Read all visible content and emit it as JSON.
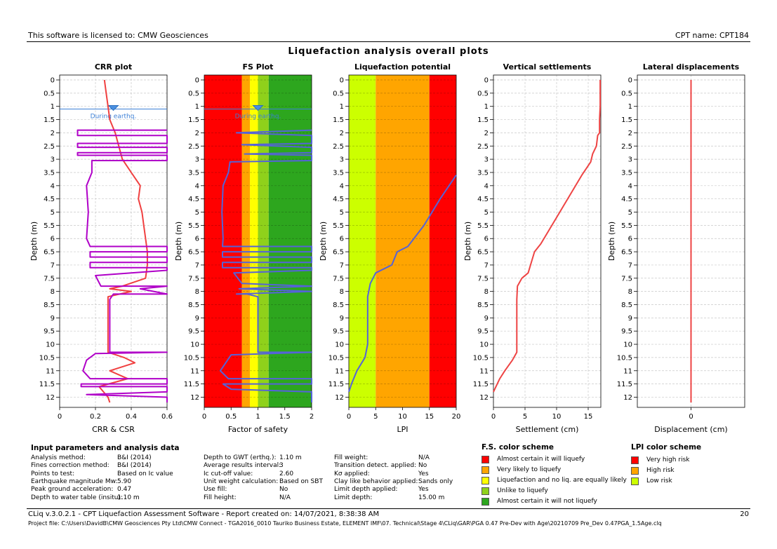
{
  "header": {
    "license": "This software is licensed to: CMW Geosciences",
    "cpt_name": "CPT name: CPT184"
  },
  "main_title": "Liquefaction analysis overall plots",
  "colors": {
    "red": "#ff0000",
    "orange": "#ffa500",
    "yellow": "#ffff00",
    "lightgreen": "#8fd11b",
    "green": "#2da61e",
    "ltgreen_lpi": "#ccff00",
    "crr": "#f04040",
    "csr": "#b000c8",
    "fs": "#5563d8",
    "settle": "#ee4444"
  },
  "chart_data": [
    {
      "type": "line",
      "title": "CRR plot",
      "xlabel": "CRR & CSR",
      "ylabel": "Depth (m)",
      "xlim": [
        0,
        0.6
      ],
      "xticks": [
        "0",
        "0.2",
        "0.4",
        "0.6"
      ],
      "ylim": [
        0,
        12.2
      ],
      "annotation": "During earthq.",
      "gwt_depth": 1.1,
      "series": [
        {
          "name": "CRR",
          "points": [
            [
              0.25,
              0
            ],
            [
              0.26,
              0.5
            ],
            [
              0.27,
              1
            ],
            [
              0.28,
              1.5
            ],
            [
              0.31,
              2
            ],
            [
              0.33,
              2.5
            ],
            [
              0.35,
              3
            ],
            [
              0.4,
              3.5
            ],
            [
              0.45,
              4
            ],
            [
              0.44,
              4.5
            ],
            [
              0.46,
              5
            ],
            [
              0.47,
              5.5
            ],
            [
              0.48,
              6
            ],
            [
              0.49,
              6.5
            ],
            [
              0.49,
              7
            ],
            [
              0.48,
              7.5
            ],
            [
              0.35,
              7.8
            ],
            [
              0.28,
              7.9
            ],
            [
              0.4,
              8
            ],
            [
              0.27,
              8.2
            ],
            [
              0.27,
              9
            ],
            [
              0.27,
              10
            ],
            [
              0.27,
              10.3
            ],
            [
              0.36,
              10.5
            ],
            [
              0.42,
              10.7
            ],
            [
              0.28,
              11
            ],
            [
              0.38,
              11.3
            ],
            [
              0.22,
              11.6
            ],
            [
              0.27,
              12
            ],
            [
              0.28,
              12.2
            ]
          ]
        },
        {
          "name": "CSR",
          "points": [
            [
              0.6,
              1.9
            ],
            [
              0.1,
              1.9
            ],
            [
              0.1,
              2.1
            ],
            [
              0.6,
              2.1
            ],
            [
              0.6,
              2.4
            ],
            [
              0.1,
              2.4
            ],
            [
              0.1,
              2.55
            ],
            [
              0.6,
              2.55
            ],
            [
              0.6,
              2.75
            ],
            [
              0.1,
              2.75
            ],
            [
              0.1,
              2.85
            ],
            [
              0.6,
              2.85
            ],
            [
              0.6,
              3.05
            ],
            [
              0.18,
              3.05
            ],
            [
              0.18,
              3.5
            ],
            [
              0.15,
              4
            ],
            [
              0.16,
              5
            ],
            [
              0.15,
              6
            ],
            [
              0.17,
              6.3
            ],
            [
              0.6,
              6.3
            ],
            [
              0.6,
              6.5
            ],
            [
              0.17,
              6.5
            ],
            [
              0.17,
              6.7
            ],
            [
              0.6,
              6.7
            ],
            [
              0.6,
              6.9
            ],
            [
              0.17,
              6.9
            ],
            [
              0.17,
              7.1
            ],
            [
              0.6,
              7.1
            ],
            [
              0.6,
              7.2
            ],
            [
              0.2,
              7.4
            ],
            [
              0.23,
              7.8
            ],
            [
              0.6,
              7.8
            ],
            [
              0.45,
              7.9
            ],
            [
              0.6,
              8.1
            ],
            [
              0.3,
              8.1
            ],
            [
              0.28,
              8.3
            ],
            [
              0.28,
              10.3
            ],
            [
              0.6,
              10.3
            ],
            [
              0.2,
              10.35
            ],
            [
              0.15,
              10.6
            ],
            [
              0.13,
              11
            ],
            [
              0.17,
              11.3
            ],
            [
              0.6,
              11.3
            ],
            [
              0.6,
              11.5
            ],
            [
              0.12,
              11.5
            ],
            [
              0.12,
              11.6
            ],
            [
              0.6,
              11.6
            ],
            [
              0.6,
              11.8
            ],
            [
              0.15,
              11.9
            ],
            [
              0.6,
              12
            ],
            [
              0.6,
              12.2
            ]
          ]
        }
      ]
    },
    {
      "type": "line",
      "title": "FS Plot",
      "xlabel": "Factor of safety",
      "ylabel": "Depth (m)",
      "xlim": [
        0,
        2
      ],
      "xticks": [
        "0",
        "0.5",
        "1",
        "1.5",
        "2"
      ],
      "ylim": [
        0,
        12.2
      ],
      "annotation": "During earthq.",
      "gwt_depth": 1.1,
      "background_bands": [
        [
          0,
          0.7,
          "red"
        ],
        [
          0.7,
          0.85,
          "orange"
        ],
        [
          0.85,
          1.0,
          "yellow"
        ],
        [
          1.0,
          1.2,
          "lightgreen"
        ],
        [
          1.2,
          2.0,
          "green"
        ]
      ],
      "series": [
        {
          "name": "FS",
          "points": [
            [
              2,
              1.9
            ],
            [
              0.6,
              2
            ],
            [
              2,
              2.1
            ],
            [
              2,
              2.4
            ],
            [
              0.7,
              2.45
            ],
            [
              2,
              2.55
            ],
            [
              2,
              2.75
            ],
            [
              0.75,
              2.8
            ],
            [
              2,
              2.85
            ],
            [
              2,
              3.05
            ],
            [
              0.48,
              3.1
            ],
            [
              0.45,
              3.5
            ],
            [
              0.35,
              4
            ],
            [
              0.34,
              4.5
            ],
            [
              0.33,
              5
            ],
            [
              0.34,
              5.5
            ],
            [
              0.35,
              6
            ],
            [
              0.34,
              6.3
            ],
            [
              2,
              6.3
            ],
            [
              2,
              6.5
            ],
            [
              0.34,
              6.5
            ],
            [
              0.34,
              6.7
            ],
            [
              2,
              6.7
            ],
            [
              2,
              6.9
            ],
            [
              0.34,
              6.9
            ],
            [
              0.34,
              7.1
            ],
            [
              2,
              7.1
            ],
            [
              2,
              7.2
            ],
            [
              0.55,
              7.3
            ],
            [
              0.7,
              7.7
            ],
            [
              2,
              7.8
            ],
            [
              0.65,
              7.9
            ],
            [
              2,
              8.0
            ],
            [
              0.6,
              8.1
            ],
            [
              0.8,
              8.1
            ],
            [
              1.0,
              8.2
            ],
            [
              1.0,
              10.3
            ],
            [
              2,
              10.3
            ],
            [
              0.5,
              10.4
            ],
            [
              0.4,
              10.7
            ],
            [
              0.3,
              11
            ],
            [
              0.45,
              11.3
            ],
            [
              2,
              11.3
            ],
            [
              2,
              11.5
            ],
            [
              0.35,
              11.5
            ],
            [
              0.5,
              11.7
            ],
            [
              2,
              11.8
            ],
            [
              2,
              12.2
            ]
          ]
        }
      ]
    },
    {
      "type": "line",
      "title": "Liquefaction potential",
      "xlabel": "LPI",
      "ylabel": "Depth (m)",
      "xlim": [
        0,
        20
      ],
      "xticks": [
        "0",
        "5",
        "10",
        "15",
        "20"
      ],
      "ylim": [
        0,
        12.2
      ],
      "background_bands": [
        [
          0,
          5,
          "ltgreen_lpi"
        ],
        [
          5,
          15,
          "orange"
        ],
        [
          15,
          20,
          "red"
        ]
      ],
      "series": [
        {
          "name": "LPI",
          "points": [
            [
              20,
              3.6
            ],
            [
              17,
              4.5
            ],
            [
              14,
              5.5
            ],
            [
              11,
              6.3
            ],
            [
              9,
              6.5
            ],
            [
              8,
              7
            ],
            [
              5,
              7.3
            ],
            [
              4,
              7.7
            ],
            [
              3.5,
              8.2
            ],
            [
              3.5,
              10
            ],
            [
              3,
              10.5
            ],
            [
              1.5,
              11
            ],
            [
              0.5,
              11.5
            ],
            [
              0,
              11.8
            ]
          ]
        }
      ]
    },
    {
      "type": "line",
      "title": "Vertical settlements",
      "xlabel": "Settlement (cm)",
      "ylabel": "Depth (m)",
      "xlim": [
        0,
        17
      ],
      "xticks": [
        "0",
        "5",
        "10",
        "15"
      ],
      "ylim": [
        0,
        12.2
      ],
      "series": [
        {
          "name": "Settlement",
          "points": [
            [
              16.9,
              0
            ],
            [
              16.9,
              1
            ],
            [
              16.8,
              1.5
            ],
            [
              16.8,
              2
            ],
            [
              16.5,
              2.1
            ],
            [
              16.3,
              2.5
            ],
            [
              15.7,
              2.8
            ],
            [
              15.4,
              3.1
            ],
            [
              14,
              3.6
            ],
            [
              12.5,
              4.2
            ],
            [
              10,
              5.2
            ],
            [
              7.5,
              6.2
            ],
            [
              6.5,
              6.5
            ],
            [
              5.5,
              7.3
            ],
            [
              4.5,
              7.5
            ],
            [
              3.8,
              7.8
            ],
            [
              3.7,
              8.3
            ],
            [
              3.7,
              10.3
            ],
            [
              3,
              10.6
            ],
            [
              1.8,
              11
            ],
            [
              1,
              11.3
            ],
            [
              0,
              11.8
            ]
          ]
        }
      ]
    },
    {
      "type": "line",
      "title": "Lateral displacements",
      "xlabel": "Displacement (cm)",
      "ylabel": "Depth (m)",
      "xlim": [
        -1,
        1
      ],
      "xticks": [
        "0"
      ],
      "ylim": [
        0,
        12.2
      ],
      "series": [
        {
          "name": "Displacement",
          "points": [
            [
              0,
              0
            ],
            [
              0,
              12.2
            ]
          ]
        }
      ]
    }
  ],
  "y_ticks": [
    "0",
    "0.5",
    "1",
    "1.5",
    "2",
    "2.5",
    "3",
    "3.5",
    "4",
    "4.5",
    "5",
    "5.5",
    "6",
    "6.5",
    "7",
    "7.5",
    "8",
    "8.5",
    "9",
    "9.5",
    "10",
    "10.5",
    "11",
    "11.5",
    "12"
  ],
  "input_params": {
    "title": "Input parameters and analysis data",
    "col1": [
      {
        "label": "Analysis method:",
        "value": "B&I (2014)"
      },
      {
        "label": "Fines correction method:",
        "value": "B&I (2014)"
      },
      {
        "label": "Points to test:",
        "value": "Based on Ic value"
      },
      {
        "label": "Earthquake magnitude Mw:",
        "value": "5.90"
      },
      {
        "label": "Peak ground acceleration:",
        "value": "0.47"
      },
      {
        "label": "Depth to water table (insitu):",
        "value": "1.10 m"
      }
    ],
    "col2": [
      {
        "label": "Depth to GWT (erthq.):",
        "value": "1.10 m"
      },
      {
        "label": "Average results interval:",
        "value": "3"
      },
      {
        "label": "Ic cut-off value:",
        "value": "2.60"
      },
      {
        "label": "Unit weight calculation:",
        "value": "Based on SBT"
      },
      {
        "label": "Use fill:",
        "value": "No"
      },
      {
        "label": "Fill height:",
        "value": "N/A"
      }
    ],
    "col3": [
      {
        "label": "Fill weight:",
        "value": "N/A"
      },
      {
        "label": "Transition detect. applied:",
        "value": "No"
      },
      {
        "label": "Kσ applied:",
        "value": "Yes"
      },
      {
        "label": "Clay like behavior applied:",
        "value": "Sands only"
      },
      {
        "label": "Limit depth applied:",
        "value": "Yes"
      },
      {
        "label": "Limit depth:",
        "value": "15.00 m"
      }
    ]
  },
  "fs_scheme": {
    "title": "F.S. color scheme",
    "items": [
      {
        "color": "red",
        "label": "Almost certain it will liquefy"
      },
      {
        "color": "orange",
        "label": "Very likely to liquefy"
      },
      {
        "color": "yellow",
        "label": "Liquefaction and no liq. are equally likely"
      },
      {
        "color": "lightgreen",
        "label": "Unlike to liquefy"
      },
      {
        "color": "green",
        "label": "Almost certain it will not liquefy"
      }
    ]
  },
  "lpi_scheme": {
    "title": "LPI color scheme",
    "items": [
      {
        "color": "red",
        "label": "Very high risk"
      },
      {
        "color": "orange",
        "label": "High risk"
      },
      {
        "color": "ltgreen_lpi",
        "label": "Low risk"
      }
    ]
  },
  "footer": {
    "line1": "CLiq v.3.0.2.1 - CPT Liquefaction Assessment Software - Report created on: 14/07/2021, 8:38:38 AM",
    "page": "20",
    "line2": "Project file: C:\\Users\\DavidB\\CMW Geosciences Pty Ltd\\CMW Connect - TGA2016_0010 Tauriko Business Estate, ELEMENT IMF\\07. Technical\\Stage 4\\CLiq\\GAR\\PGA 0.47 Pre-Dev with Age\\20210709 Pre_Dev 0.47PGA_1.5Age.clq"
  }
}
